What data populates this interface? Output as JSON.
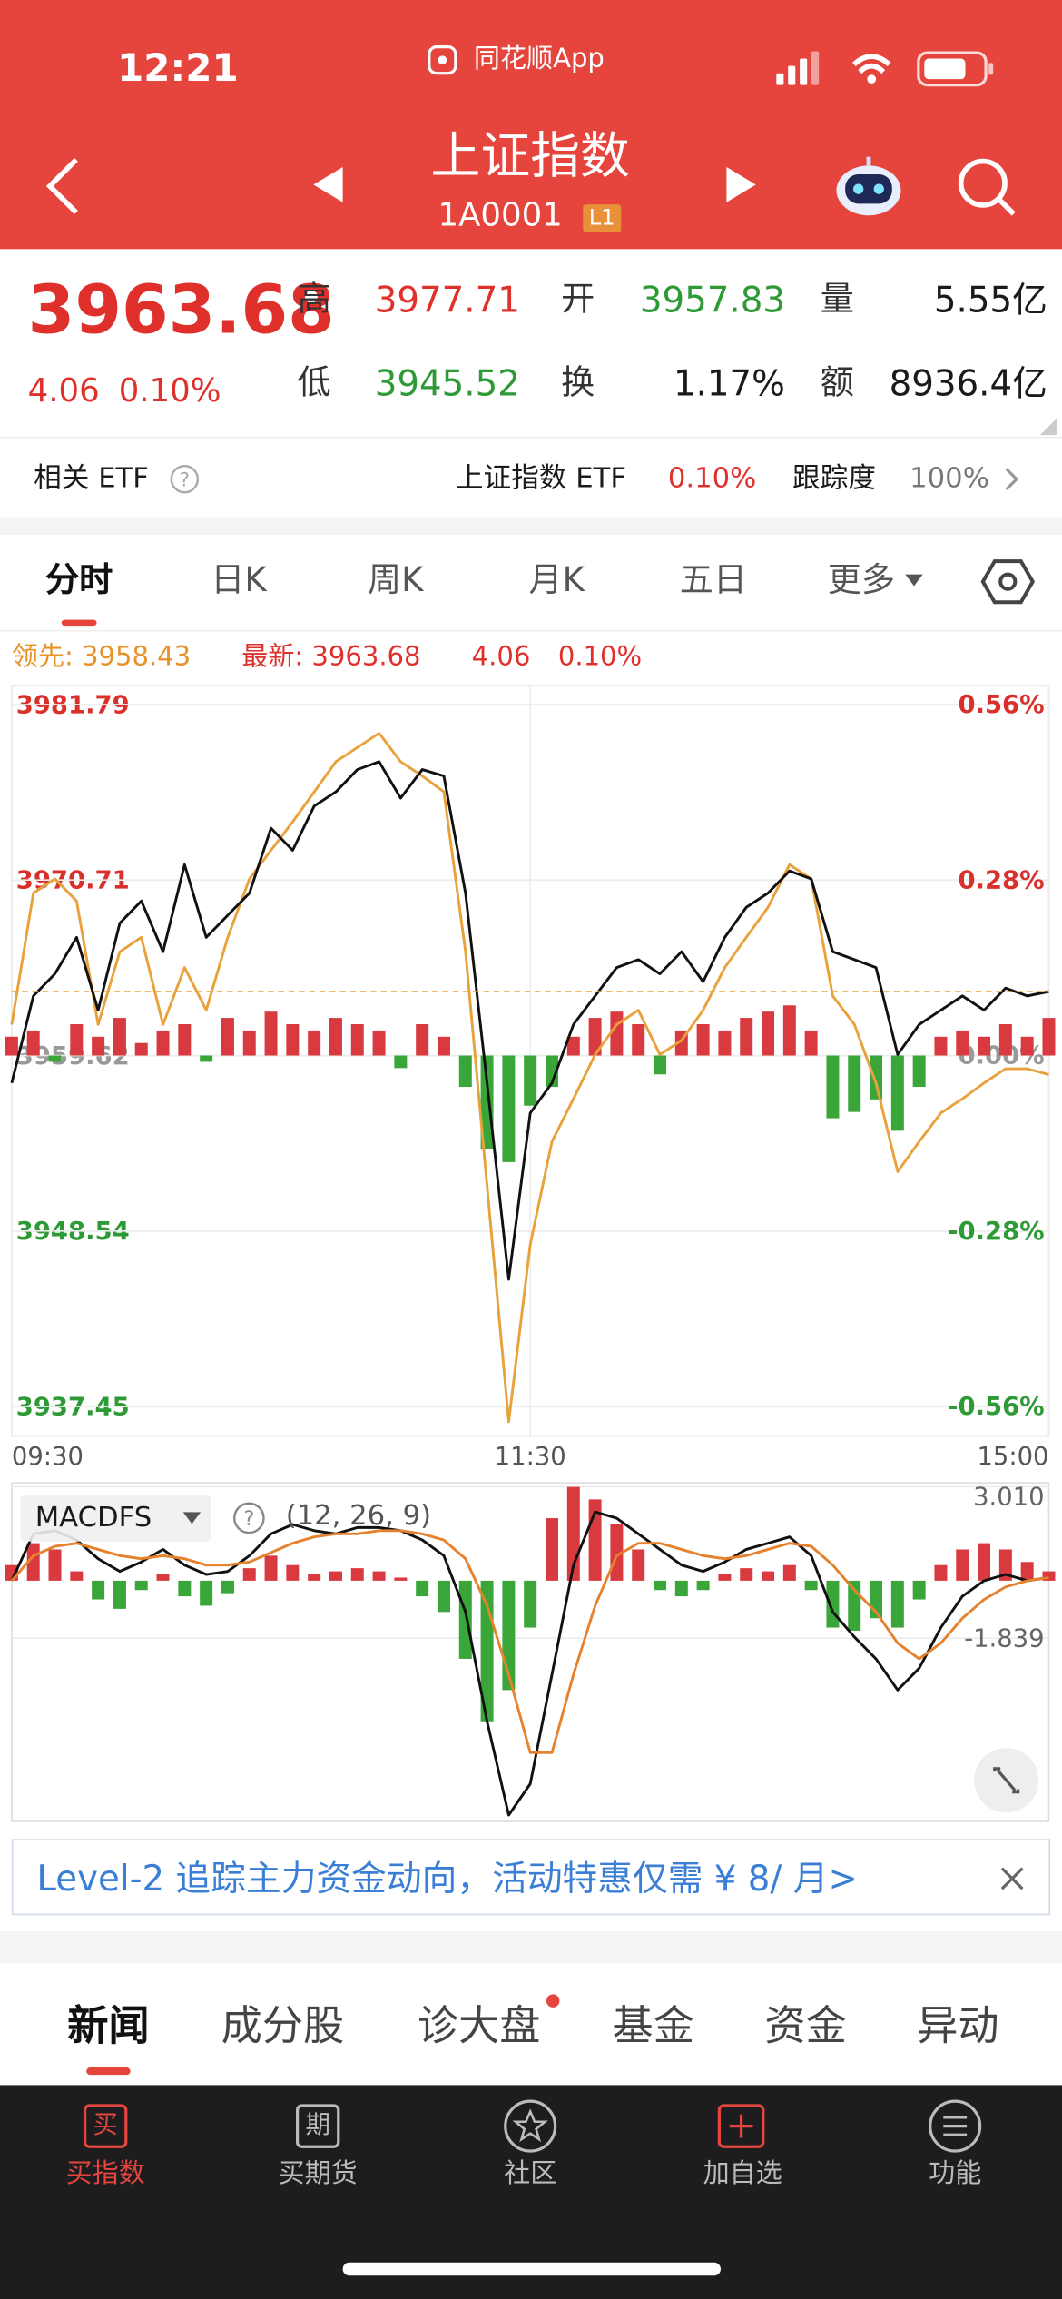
{
  "status_bar": {
    "time": "12:21",
    "app": "同花顺App"
  },
  "header": {
    "title": "上证指数",
    "code": "1A0001",
    "badge": "L1"
  },
  "quote": {
    "price": "3963.68",
    "change": "4.06",
    "change_pct": "0.10%",
    "fields": [
      {
        "label": "高",
        "value": "3977.71"
      },
      {
        "label": "开",
        "value": "3957.83"
      },
      {
        "label": "量",
        "value": "5.55亿"
      },
      {
        "label": "低",
        "value": "3945.52"
      },
      {
        "label": "换",
        "value": "1.17%"
      },
      {
        "label": "额",
        "value": "8936.4亿"
      }
    ]
  },
  "etf": {
    "label": "相关 ETF",
    "name": "上证指数 ETF",
    "pct": "0.10%",
    "tracking_label": "跟踪度",
    "tracking": "100%"
  },
  "tabs": [
    "分时",
    "日K",
    "周K",
    "月K",
    "五日",
    "更多"
  ],
  "legend": [
    "领先: 3958.43",
    "最新: 3963.68",
    "4.06",
    "0.10%"
  ],
  "chart_data": [
    {
      "type": "line",
      "x": [
        0,
        5,
        10,
        15,
        20,
        25,
        30,
        35,
        40,
        45,
        50,
        55,
        60,
        65,
        70,
        75,
        80,
        85,
        90,
        95,
        100,
        105,
        110,
        115,
        120,
        125,
        130,
        135,
        140,
        145,
        150,
        155,
        160,
        165,
        170,
        175,
        180,
        185,
        190,
        195,
        200,
        205,
        210,
        215,
        220,
        225,
        230,
        235,
        240
      ],
      "xlim": [
        0,
        240
      ],
      "xticks": [
        {
          "value": 0,
          "label": "09:30"
        },
        {
          "value": 120,
          "label": "11:30"
        },
        {
          "value": 240,
          "label": "15:00"
        }
      ],
      "ylim": [
        3935.6,
        3983.0
      ],
      "yticks": [
        3981.79,
        3970.71,
        3959.62,
        3948.54,
        3937.45
      ],
      "y2lim": [
        -0.607,
        0.59
      ],
      "y2ticks": [
        {
          "value": 0.56,
          "label": "0.56%"
        },
        {
          "value": 0.28,
          "label": "0.28%"
        },
        {
          "value": 0,
          "label": "0.00%"
        },
        {
          "value": -0.28,
          "label": "-0.28%"
        },
        {
          "value": -0.56,
          "label": "-0.56%"
        }
      ],
      "grid": true,
      "series": [
        {
          "type": "bar",
          "axis": "y2",
          "color": "#d93a3f",
          "negative_color": "#3aa63a",
          "values": [
            0.03,
            0.04,
            -0.01,
            0.05,
            0.03,
            0.06,
            0.02,
            0.04,
            0.05,
            -0.01,
            0.06,
            0.04,
            0.07,
            0.05,
            0.04,
            0.06,
            0.05,
            0.04,
            -0.02,
            0.05,
            0.03,
            -0.05,
            -0.15,
            -0.17,
            -0.08,
            -0.05,
            0.03,
            0.06,
            0.07,
            0.05,
            -0.03,
            0.04,
            0.05,
            0.04,
            0.06,
            0.07,
            0.08,
            0.04,
            -0.1,
            -0.09,
            -0.07,
            -0.12,
            -0.05,
            0.03,
            0.04,
            0.03,
            0.05,
            0.03,
            0.06
          ]
        },
        {
          "type": "line",
          "color": "#e9a23b",
          "values": [
            3961.6,
            3969.9,
            3970.8,
            3969.4,
            3961.6,
            3966.2,
            3967.1,
            3961.6,
            3965.2,
            3962.5,
            3967.1,
            3970.8,
            3972.6,
            3974.4,
            3976.3,
            3978.2,
            3979.1,
            3980.0,
            3978.2,
            3977.3,
            3976.3,
            3966.2,
            3951.4,
            3936.5,
            3947.7,
            3954.2,
            3956.9,
            3959.7,
            3961.6,
            3962.5,
            3959.7,
            3960.6,
            3962.5,
            3965.2,
            3967.1,
            3969.0,
            3971.7,
            3970.8,
            3963.4,
            3961.6,
            3957.9,
            3952.3,
            3954.2,
            3956.0,
            3956.9,
            3957.9,
            3958.8,
            3958.8,
            3958.43
          ]
        },
        {
          "type": "line",
          "color": "#111111",
          "values": [
            3957.9,
            3963.4,
            3964.8,
            3967.1,
            3962.5,
            3968.0,
            3969.4,
            3966.2,
            3971.7,
            3967.1,
            3968.5,
            3969.9,
            3974.0,
            3972.6,
            3975.4,
            3976.3,
            3977.7,
            3978.2,
            3975.9,
            3977.7,
            3977.3,
            3969.9,
            3957.9,
            3945.5,
            3956.0,
            3957.9,
            3961.6,
            3963.4,
            3965.2,
            3965.7,
            3964.8,
            3966.2,
            3964.3,
            3967.1,
            3969.0,
            3969.9,
            3971.3,
            3970.8,
            3966.2,
            3965.7,
            3965.2,
            3959.7,
            3961.6,
            3962.5,
            3963.4,
            3962.5,
            3963.9,
            3963.4,
            3963.68
          ]
        }
      ]
    },
    {
      "type": "bar",
      "indicator": "MACDFS",
      "params": "(12, 26, 9)",
      "x": [
        0,
        5,
        10,
        15,
        20,
        25,
        30,
        35,
        40,
        45,
        50,
        55,
        60,
        65,
        70,
        75,
        80,
        85,
        90,
        95,
        100,
        105,
        110,
        115,
        120,
        125,
        130,
        135,
        140,
        145,
        150,
        155,
        160,
        165,
        170,
        175,
        180,
        185,
        190,
        195,
        200,
        205,
        210,
        215,
        220,
        225,
        230,
        235,
        240
      ],
      "xlim": [
        0,
        240
      ],
      "ylim": [
        -7.7,
        3.13
      ],
      "yticks": [
        {
          "value": 3.01,
          "label": "3.010"
        },
        -1.839
      ],
      "grid": true,
      "series": [
        {
          "type": "bar",
          "color": "#d93a3f",
          "negative_color": "#3aa63a",
          "values": [
            0.5,
            1.2,
            1.0,
            0.3,
            -0.6,
            -0.9,
            -0.3,
            0.2,
            -0.5,
            -0.8,
            -0.4,
            0.4,
            0.8,
            0.5,
            0.2,
            0.3,
            0.4,
            0.3,
            0.1,
            -0.5,
            -1.0,
            -2.5,
            -4.5,
            -3.5,
            -1.5,
            2.0,
            3.0,
            2.6,
            1.8,
            1.0,
            -0.3,
            -0.5,
            -0.3,
            0.2,
            0.4,
            0.3,
            0.5,
            -0.3,
            -1.5,
            -1.6,
            -1.2,
            -1.5,
            -0.6,
            0.5,
            1.0,
            1.2,
            1.0,
            0.6,
            0.3
          ]
        },
        {
          "type": "line",
          "color": "#111111",
          "values": [
            0.0,
            1.5,
            1.6,
            1.3,
            0.7,
            0.3,
            0.6,
            1.0,
            0.5,
            0.2,
            0.3,
            0.8,
            1.5,
            1.8,
            1.6,
            1.5,
            1.7,
            1.7,
            1.6,
            1.3,
            0.8,
            -1.0,
            -4.5,
            -7.5,
            -6.5,
            -3.0,
            0.5,
            2.2,
            2.0,
            1.5,
            1.0,
            0.5,
            0.3,
            0.6,
            1.0,
            1.2,
            1.4,
            0.8,
            -1.0,
            -1.8,
            -2.5,
            -3.5,
            -2.8,
            -1.5,
            -0.5,
            0.0,
            0.2,
            0.0,
            0.1
          ]
        },
        {
          "type": "line",
          "color": "#e6822e",
          "values": [
            0.0,
            0.8,
            1.1,
            1.2,
            1.0,
            0.8,
            0.7,
            0.8,
            0.7,
            0.5,
            0.5,
            0.6,
            0.9,
            1.2,
            1.4,
            1.5,
            1.5,
            1.6,
            1.6,
            1.5,
            1.3,
            0.7,
            -0.8,
            -3.0,
            -5.5,
            -5.5,
            -3.0,
            -0.8,
            0.8,
            1.2,
            1.2,
            1.0,
            0.8,
            0.7,
            0.8,
            1.0,
            1.2,
            1.1,
            0.5,
            -0.3,
            -1.0,
            -2.0,
            -2.5,
            -2.0,
            -1.2,
            -0.6,
            -0.2,
            0.0,
            0.1
          ]
        }
      ]
    }
  ],
  "banner": "Level-2 追踪主力资金动向，活动特惠仅需 ¥ 8/ 月>",
  "news_tabs": [
    "新闻",
    "成分股",
    "诊大盘",
    "基金",
    "资金",
    "异动"
  ],
  "bottom_nav": [
    {
      "icon": "买",
      "label": "买指数"
    },
    {
      "icon": "期",
      "label": "买期货"
    },
    {
      "label": "社区"
    },
    {
      "label": "加自选"
    },
    {
      "label": "功能"
    }
  ]
}
